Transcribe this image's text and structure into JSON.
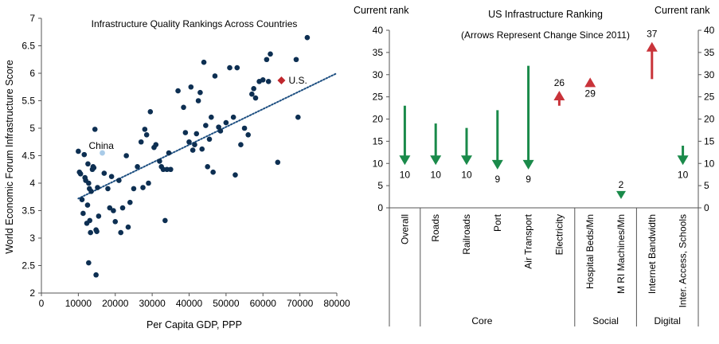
{
  "chart_data": [
    {
      "type": "scatter",
      "title": "Infrastructure  Quality Rankings Across Countries",
      "xlabel": "Per Capita  GDP, PPP",
      "ylabel": "World Economic Forum Infrastructure  Score",
      "xlim": [
        0,
        80000
      ],
      "ylim": [
        2,
        7
      ],
      "xticks": [
        "0",
        "10000",
        "20000",
        "30000",
        "40000",
        "50000",
        "60000",
        "70000",
        "80000"
      ],
      "yticks": [
        "2",
        "2.5",
        "3",
        "3.5",
        "4",
        "4.5",
        "5",
        "5.5",
        "6",
        "6.5",
        "7"
      ],
      "colors": {
        "points": "#0d2f52",
        "us": "#c0272d",
        "china": "#a9cbe8",
        "trend": "#1c4e80"
      },
      "trendline": {
        "x": [
          10000,
          80000
        ],
        "y": [
          3.72,
          6.0
        ],
        "style": "dotted"
      },
      "highlights": [
        {
          "label": "China",
          "x": 16500,
          "y": 4.55
        },
        {
          "label": "U.S.",
          "x": 65000,
          "y": 5.87
        }
      ],
      "points": [
        [
          10000,
          4.58
        ],
        [
          10300,
          4.2
        ],
        [
          10600,
          4.17
        ],
        [
          11000,
          3.7
        ],
        [
          11300,
          3.45
        ],
        [
          11600,
          4.52
        ],
        [
          11800,
          4.1
        ],
        [
          12000,
          4.05
        ],
        [
          12300,
          3.27
        ],
        [
          12500,
          3.6
        ],
        [
          12600,
          4.35
        ],
        [
          12800,
          4.0
        ],
        [
          13000,
          3.9
        ],
        [
          13100,
          3.32
        ],
        [
          13300,
          3.1
        ],
        [
          13500,
          3.85
        ],
        [
          13800,
          4.25
        ],
        [
          14000,
          4.3
        ],
        [
          14200,
          4.28
        ],
        [
          14500,
          4.98
        ],
        [
          14800,
          3.15
        ],
        [
          15000,
          3.12
        ],
        [
          15200,
          3.92
        ],
        [
          15500,
          3.4
        ],
        [
          12800,
          2.55
        ],
        [
          14800,
          2.33
        ],
        [
          17000,
          4.18
        ],
        [
          18000,
          3.9
        ],
        [
          18500,
          3.55
        ],
        [
          19000,
          4.12
        ],
        [
          19500,
          3.5
        ],
        [
          20000,
          3.3
        ],
        [
          21000,
          4.05
        ],
        [
          21500,
          3.1
        ],
        [
          22000,
          3.55
        ],
        [
          23000,
          4.5
        ],
        [
          23500,
          3.2
        ],
        [
          24000,
          3.65
        ],
        [
          25000,
          3.9
        ],
        [
          26000,
          4.3
        ],
        [
          27000,
          4.75
        ],
        [
          27500,
          3.92
        ],
        [
          28000,
          4.98
        ],
        [
          28500,
          4.88
        ],
        [
          29000,
          4.0
        ],
        [
          29500,
          5.3
        ],
        [
          30500,
          4.65
        ],
        [
          31000,
          4.7
        ],
        [
          32000,
          4.4
        ],
        [
          32500,
          4.3
        ],
        [
          33000,
          4.25
        ],
        [
          33500,
          3.32
        ],
        [
          34000,
          4.25
        ],
        [
          34500,
          4.55
        ],
        [
          35000,
          4.25
        ],
        [
          37000,
          5.68
        ],
        [
          38500,
          5.38
        ],
        [
          39000,
          4.92
        ],
        [
          40000,
          4.75
        ],
        [
          40500,
          5.75
        ],
        [
          41000,
          4.6
        ],
        [
          41500,
          4.7
        ],
        [
          42000,
          4.9
        ],
        [
          42500,
          5.5
        ],
        [
          43000,
          5.65
        ],
        [
          43500,
          4.62
        ],
        [
          44000,
          6.2
        ],
        [
          44500,
          5.05
        ],
        [
          45000,
          4.3
        ],
        [
          45500,
          4.8
        ],
        [
          46000,
          5.2
        ],
        [
          46500,
          4.2
        ],
        [
          47000,
          5.95
        ],
        [
          48000,
          5.02
        ],
        [
          48500,
          4.95
        ],
        [
          50000,
          5.1
        ],
        [
          51000,
          6.1
        ],
        [
          52000,
          5.2
        ],
        [
          52500,
          4.15
        ],
        [
          53000,
          6.1
        ],
        [
          54000,
          4.7
        ],
        [
          55000,
          5.0
        ],
        [
          56000,
          4.88
        ],
        [
          57000,
          5.62
        ],
        [
          57500,
          5.72
        ],
        [
          58000,
          5.55
        ],
        [
          59000,
          5.85
        ],
        [
          60000,
          5.88
        ],
        [
          61000,
          6.25
        ],
        [
          61500,
          5.85
        ],
        [
          62000,
          6.35
        ],
        [
          64000,
          4.38
        ],
        [
          69000,
          6.25
        ],
        [
          69500,
          5.2
        ],
        [
          72000,
          6.65
        ]
      ]
    },
    {
      "type": "bar",
      "title": "US Infrastructure  Ranking",
      "subtitle": "(Arrows  Represent  Change  Since 2011)",
      "left_axis_title": "Current  rank",
      "right_axis_title": "Current  rank",
      "ylim": [
        0,
        40
      ],
      "yticks": [
        "0",
        "5",
        "10",
        "15",
        "20",
        "25",
        "30",
        "35",
        "40"
      ],
      "colors": {
        "improved": "#1a8a4a",
        "worsened": "#c9333a"
      },
      "categories": [
        "Overall",
        "Roads",
        "Railroads",
        "Port",
        "Air Transport",
        "Electricity",
        "Hospital Beds/Mn",
        "M RI Machines/Mn",
        "Internet Bandwidth",
        "Inter. Access, Schools"
      ],
      "series": [
        {
          "from": [
            23,
            19,
            18,
            22,
            32,
            23,
            28,
            2,
            29,
            14
          ],
          "current": [
            10,
            10,
            10,
            9,
            9,
            26,
            29,
            2,
            37,
            10
          ]
        }
      ],
      "current_labels": [
        "10",
        "10",
        "10",
        "9",
        "9",
        "26",
        "29",
        "2",
        "37",
        "10"
      ],
      "groups": [
        {
          "label": "Core",
          "span": 6
        },
        {
          "label": "Social",
          "span": 2
        },
        {
          "label": "Digital",
          "span": 2
        }
      ]
    }
  ]
}
